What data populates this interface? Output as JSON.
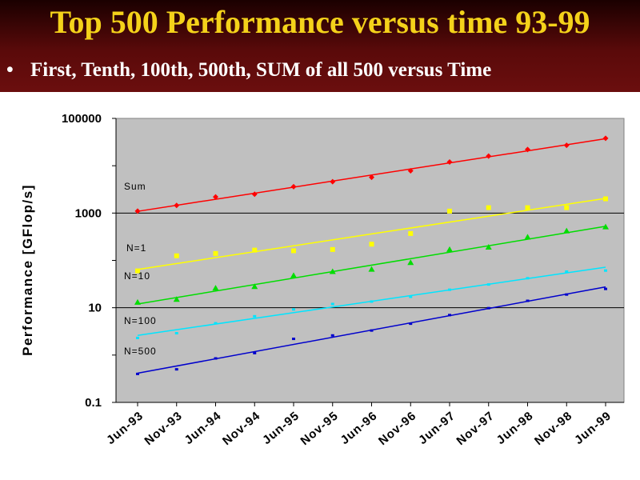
{
  "slide": {
    "title": "Top 500 Performance versus time 93-99",
    "bullet": "First, Tenth, 100th, 500th, SUM of all 500 versus Time"
  },
  "chart_data": {
    "type": "scatter",
    "y_scale": "log",
    "ylabel": "Performance [GFlop/s]",
    "yticks": [
      "0.1",
      "10",
      "1000",
      "100000"
    ],
    "ylim": [
      0.1,
      100000
    ],
    "xticks": [
      "Jun-93",
      "Nov-93",
      "Jun-94",
      "Nov-94",
      "Jun-95",
      "Nov-95",
      "Jun-96",
      "Nov-96",
      "Jun-97",
      "Nov-97",
      "Jun-98",
      "Nov-98",
      "Jun-99"
    ],
    "grid": "horizontal lines at 10 and 1000",
    "background": "#c0c0c0",
    "series": [
      {
        "name": "Sum",
        "color": "#ff0000",
        "marker": "diamond",
        "trend": "linear-fit",
        "values": [
          1100,
          1450,
          2200,
          2500,
          3600,
          4600,
          5700,
          7800,
          12000,
          16000,
          22000,
          27000,
          38000
        ]
      },
      {
        "name": "N=1",
        "color": "#ffff00",
        "marker": "square",
        "trend": "linear-fit",
        "values": [
          60,
          125,
          140,
          165,
          160,
          170,
          220,
          370,
          1100,
          1300,
          1300,
          1300,
          2000
        ]
      },
      {
        "name": "N=10",
        "color": "#00dd00",
        "marker": "triangle",
        "trend": "linear-fit",
        "values": [
          13,
          15,
          26,
          28,
          48,
          58,
          65,
          90,
          170,
          190,
          310,
          420,
          510
        ]
      },
      {
        "name": "N=100",
        "color": "#00e5ff",
        "marker": "dash",
        "trend": "linear-fit",
        "values": [
          2.3,
          2.9,
          4.7,
          6.6,
          9.2,
          12,
          13.5,
          17,
          24,
          31,
          42,
          58,
          61
        ]
      },
      {
        "name": "N=500",
        "color": "#0000cc",
        "marker": "dash",
        "trend": "linear-fit",
        "values": [
          0.4,
          0.5,
          0.85,
          1.1,
          2.2,
          2.6,
          3.3,
          4.6,
          7,
          9.8,
          14,
          19,
          25
        ]
      }
    ]
  }
}
